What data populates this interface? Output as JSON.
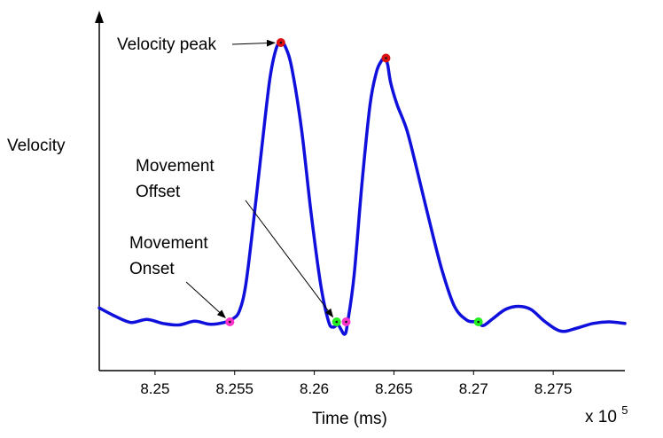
{
  "chart_data": {
    "type": "line",
    "title": "",
    "xlabel": "Time (ms)",
    "ylabel": "Velocity",
    "x_multiplier_label": "x 10",
    "x_multiplier_exponent": "5",
    "xlim": [
      8.2465,
      8.2795
    ],
    "ylim": [
      0,
      1
    ],
    "grid": false,
    "legend": "none",
    "x_ticks": [
      "8.25",
      "8.255",
      "8.26",
      "8.265",
      "8.27",
      "8.275"
    ],
    "x_tick_values": [
      8.25,
      8.255,
      8.26,
      8.265,
      8.27,
      8.275
    ],
    "series": [
      {
        "color": "#1010dd",
        "x": [
          8.2465,
          8.2475,
          8.2485,
          8.2495,
          8.2505,
          8.2515,
          8.2525,
          8.2535,
          8.2545,
          8.2549,
          8.2553,
          8.2557,
          8.2562,
          8.2567,
          8.2572,
          8.2576,
          8.2579,
          8.2582,
          8.2586,
          8.2592,
          8.2598,
          8.2604,
          8.2609,
          8.2612,
          8.2615,
          8.2619,
          8.2621,
          8.2625,
          8.263,
          8.2635,
          8.2639,
          8.2642,
          8.2644,
          8.2646,
          8.2648,
          8.2652,
          8.2658,
          8.2664,
          8.2672,
          8.268,
          8.2688,
          8.2696,
          8.2702,
          8.2706,
          8.2712,
          8.272,
          8.2728,
          8.2736,
          8.2745,
          8.2755,
          8.2765,
          8.2775,
          8.2785,
          8.2795
        ],
        "y": [
          0.145,
          0.118,
          0.098,
          0.108,
          0.095,
          0.09,
          0.102,
          0.092,
          0.1,
          0.11,
          0.135,
          0.22,
          0.43,
          0.66,
          0.88,
          0.98,
          1.0,
          0.985,
          0.915,
          0.72,
          0.45,
          0.22,
          0.1,
          0.083,
          0.09,
          0.06,
          0.1,
          0.25,
          0.55,
          0.8,
          0.905,
          0.94,
          0.95,
          0.93,
          0.87,
          0.8,
          0.72,
          0.6,
          0.43,
          0.27,
          0.15,
          0.105,
          0.1,
          0.088,
          0.11,
          0.14,
          0.15,
          0.14,
          0.1,
          0.07,
          0.08,
          0.095,
          0.1,
          0.095
        ]
      }
    ],
    "markers": [
      {
        "x": 8.2547,
        "y": 0.1,
        "color": "#ff33cc"
      },
      {
        "x": 8.2579,
        "y": 1.0,
        "color": "#dd1111"
      },
      {
        "x": 8.2614,
        "y": 0.1,
        "color": "#22ee22"
      },
      {
        "x": 8.262,
        "y": 0.1,
        "color": "#ff33cc"
      },
      {
        "x": 8.2645,
        "y": 0.95,
        "color": "#dd1111"
      },
      {
        "x": 8.2703,
        "y": 0.1,
        "color": "#22ee22"
      }
    ],
    "annotations": [
      {
        "id": "velocity-peak",
        "lines": [
          "Velocity peak"
        ],
        "target_marker": 1
      },
      {
        "id": "movement-offset",
        "lines": [
          "Movement",
          "Offset"
        ],
        "target_marker": 2
      },
      {
        "id": "movement-onset",
        "lines": [
          "Movement",
          "Onset"
        ],
        "target_marker": 0
      }
    ]
  }
}
